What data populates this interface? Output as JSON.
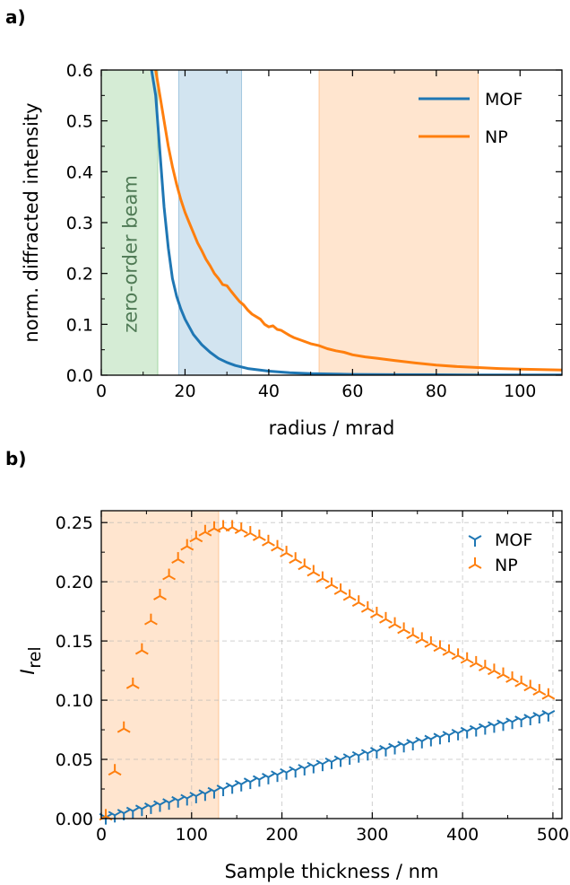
{
  "colors": {
    "mof": "#1f77b4",
    "np": "#ff7f0e",
    "zero": "#2ca02c",
    "grid": "#b0b0b0"
  },
  "chart_data": [
    {
      "panel": "a)",
      "type": "line",
      "xlabel": "radius / mrad",
      "ylabel": "norm. diffracted intensity",
      "xlim": [
        0,
        110
      ],
      "ylim": [
        0,
        0.6
      ],
      "xticks": [
        "0",
        "20",
        "40",
        "60",
        "80",
        "100"
      ],
      "yticks": [
        "0.0",
        "0.1",
        "0.2",
        "0.3",
        "0.4",
        "0.5",
        "0.6"
      ],
      "legend_position": "top-right",
      "annotation": "zero-order beam",
      "shaded_regions": [
        {
          "x": [
            0,
            13.5
          ],
          "color": "zero"
        },
        {
          "x": [
            18.5,
            33.5
          ],
          "color": "mof"
        },
        {
          "x": [
            52,
            90
          ],
          "color": "np"
        }
      ],
      "series": [
        {
          "name": "MOF",
          "color": "mof",
          "x": [
            12,
            13,
            14,
            15,
            16,
            17,
            18,
            19,
            20,
            22,
            24,
            26,
            28,
            30,
            32,
            35,
            40,
            45,
            50,
            60,
            70,
            80,
            90,
            100,
            110
          ],
          "y": [
            0.6,
            0.55,
            0.44,
            0.33,
            0.25,
            0.19,
            0.155,
            0.13,
            0.11,
            0.08,
            0.06,
            0.045,
            0.033,
            0.025,
            0.019,
            0.013,
            0.008,
            0.005,
            0.003,
            0.0015,
            0.001,
            0.0008,
            0.0006,
            0.0005,
            0.0004
          ]
        },
        {
          "name": "NP",
          "color": "np",
          "x": [
            13,
            14,
            15,
            16,
            17,
            18,
            19,
            20,
            21,
            22,
            23,
            24,
            25,
            26,
            27,
            28,
            29,
            30,
            31,
            32,
            33,
            34,
            35,
            36,
            37,
            38,
            39,
            40,
            41,
            42,
            43,
            44,
            45,
            46,
            48,
            50,
            52,
            54,
            56,
            58,
            60,
            63,
            66,
            70,
            75,
            80,
            85,
            90,
            95,
            100,
            105,
            110
          ],
          "y": [
            0.6,
            0.55,
            0.5,
            0.45,
            0.41,
            0.375,
            0.345,
            0.32,
            0.3,
            0.28,
            0.26,
            0.245,
            0.228,
            0.215,
            0.2,
            0.19,
            0.178,
            0.176,
            0.165,
            0.155,
            0.145,
            0.138,
            0.128,
            0.12,
            0.115,
            0.11,
            0.1,
            0.095,
            0.097,
            0.09,
            0.088,
            0.083,
            0.078,
            0.074,
            0.068,
            0.062,
            0.058,
            0.052,
            0.048,
            0.045,
            0.04,
            0.036,
            0.033,
            0.029,
            0.024,
            0.02,
            0.017,
            0.015,
            0.013,
            0.012,
            0.011,
            0.01
          ]
        }
      ]
    },
    {
      "panel": "b)",
      "type": "scatter",
      "xlabel": "Sample thickness / nm",
      "ylabel_main": "I",
      "ylabel_sub": "rel",
      "xlim": [
        0,
        510
      ],
      "ylim": [
        0,
        0.26
      ],
      "xticks": [
        "0",
        "100",
        "200",
        "300",
        "400",
        "500"
      ],
      "yticks": [
        "0.00",
        "0.05",
        "0.10",
        "0.15",
        "0.20",
        "0.25"
      ],
      "grid": true,
      "legend_position": "top-right",
      "shaded_regions": [
        {
          "x": [
            0,
            130
          ],
          "color": "np"
        }
      ],
      "series": [
        {
          "name": "MOF",
          "color": "mof",
          "marker": "tri_down",
          "x_start": 5,
          "x_step": 10,
          "count": 50,
          "anchors": [
            [
              5,
              0.001
            ],
            [
              100,
              0.018
            ],
            [
              200,
              0.038
            ],
            [
              300,
              0.056
            ],
            [
              400,
              0.073
            ],
            [
              495,
              0.088
            ]
          ]
        },
        {
          "name": "NP",
          "color": "np",
          "marker": "tri_up",
          "x_start": 5,
          "x_step": 10,
          "count": 50,
          "anchors": [
            [
              5,
              0.002
            ],
            [
              15,
              0.04
            ],
            [
              25,
              0.076
            ],
            [
              35,
              0.113
            ],
            [
              45,
              0.142
            ],
            [
              55,
              0.167
            ],
            [
              65,
              0.188
            ],
            [
              75,
              0.205
            ],
            [
              85,
              0.219
            ],
            [
              95,
              0.23
            ],
            [
              105,
              0.237
            ],
            [
              115,
              0.242
            ],
            [
              125,
              0.245
            ],
            [
              135,
              0.246
            ],
            [
              145,
              0.246
            ],
            [
              155,
              0.244
            ],
            [
              175,
              0.238
            ],
            [
              200,
              0.227
            ],
            [
              250,
              0.2
            ],
            [
              300,
              0.175
            ],
            [
              350,
              0.153
            ],
            [
              400,
              0.136
            ],
            [
              450,
              0.12
            ],
            [
              495,
              0.104
            ]
          ]
        }
      ]
    }
  ]
}
